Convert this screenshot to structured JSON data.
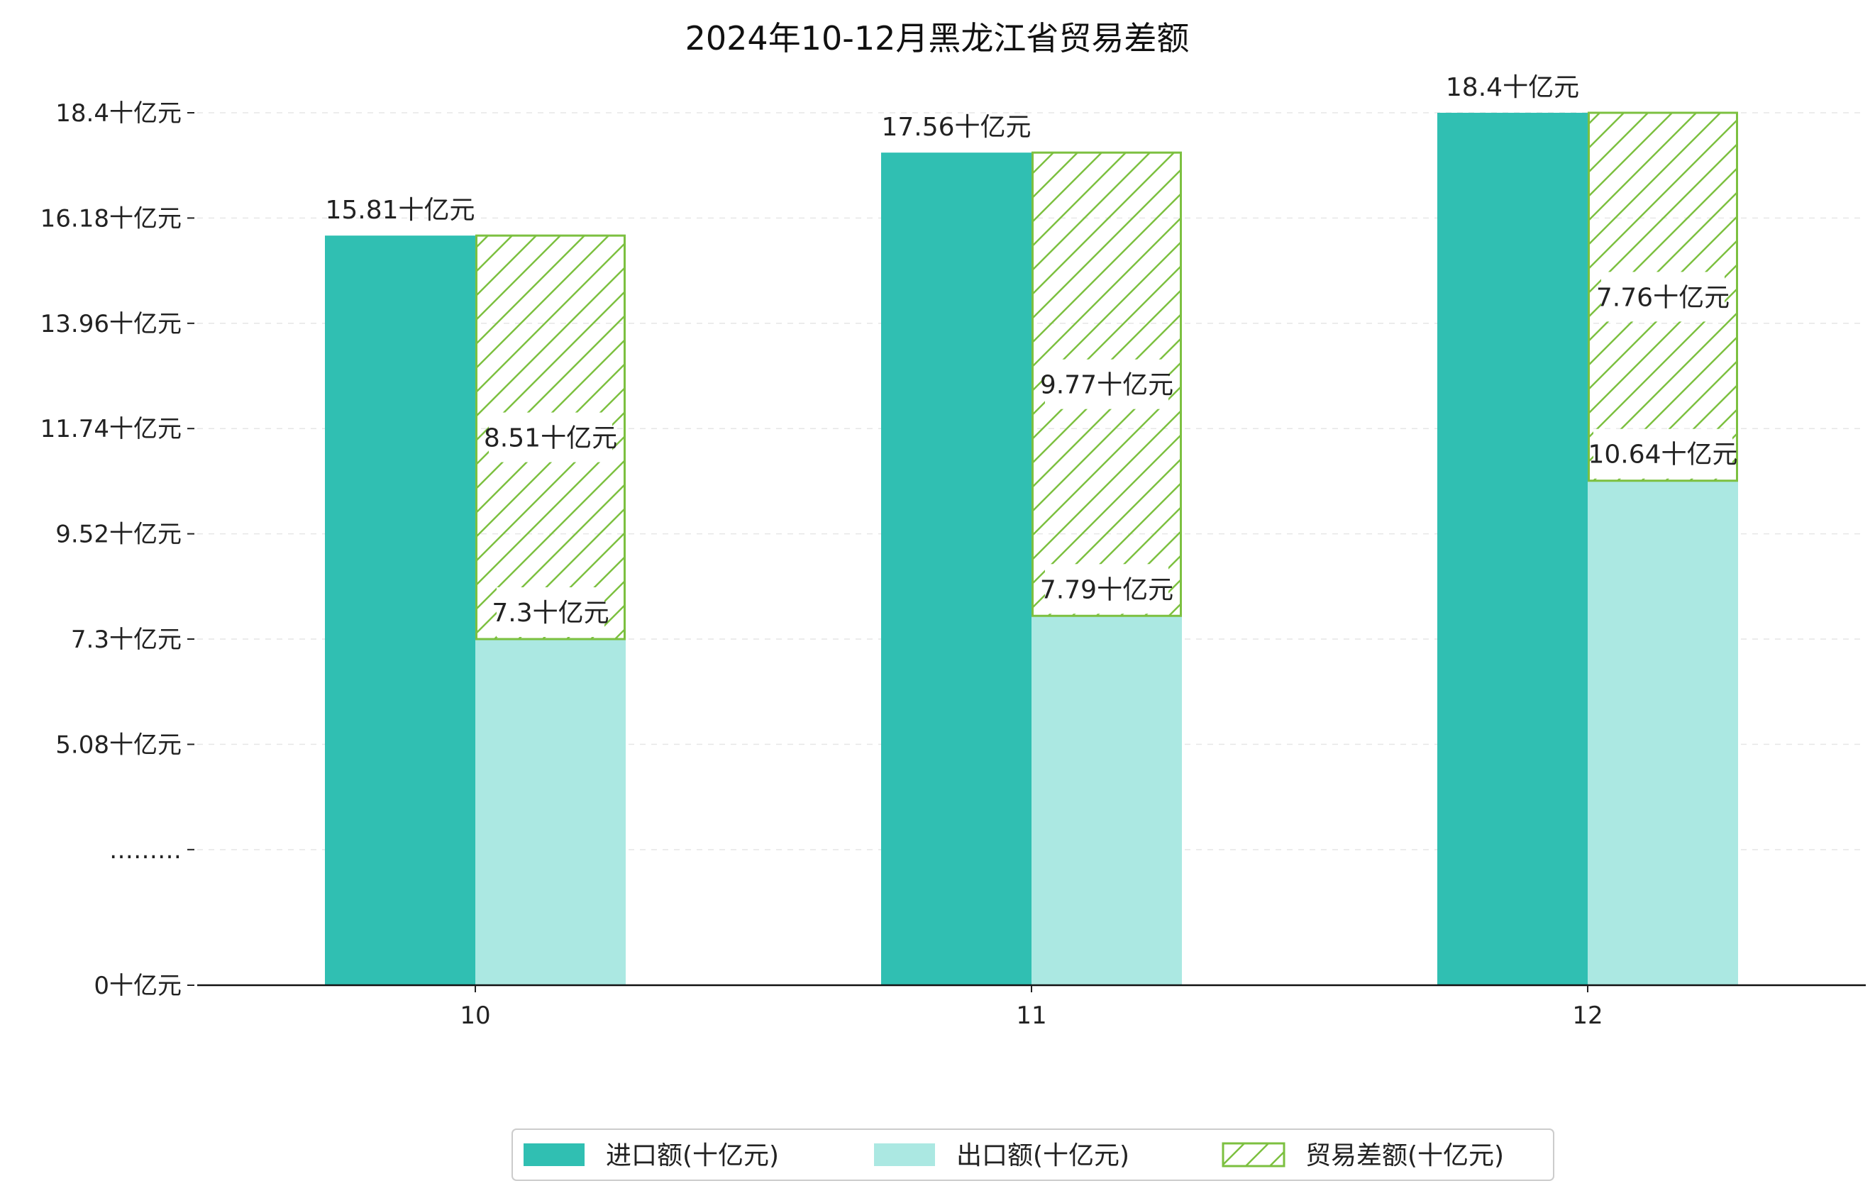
{
  "chart_data": {
    "type": "bar",
    "title": "2024年10-12月黑龙江省贸易差额",
    "categories": [
      "10",
      "11",
      "12"
    ],
    "ylim": [
      0,
      18.4
    ],
    "y_ticks": [
      {
        "value": 0,
        "label": "0十亿元"
      },
      {
        "value": 2.86,
        "label": "………"
      },
      {
        "value": 5.08,
        "label": "5.08十亿元"
      },
      {
        "value": 7.3,
        "label": "7.3十亿元"
      },
      {
        "value": 9.52,
        "label": "9.52十亿元"
      },
      {
        "value": 11.74,
        "label": "11.74十亿元"
      },
      {
        "value": 13.96,
        "label": "13.96十亿元"
      },
      {
        "value": 16.18,
        "label": "16.18十亿元"
      },
      {
        "value": 18.4,
        "label": "18.4十亿元"
      }
    ],
    "series": [
      {
        "name": "进口额(十亿元)",
        "values": [
          15.81,
          17.56,
          18.4
        ],
        "labels": [
          "15.81十亿元",
          "17.56十亿元",
          "18.4十亿元"
        ],
        "color": "#30bfb2"
      },
      {
        "name": "出口额(十亿元)",
        "values": [
          7.3,
          7.79,
          10.64
        ],
        "labels": [
          "7.3十亿元",
          "7.79十亿元",
          "10.64十亿元"
        ],
        "color": "#abe8e2"
      },
      {
        "name": "贸易差额(十亿元)",
        "values": [
          8.51,
          9.77,
          7.76
        ],
        "labels": [
          "8.51十亿元",
          "9.77十亿元",
          "7.76十亿元"
        ],
        "color": "#7cc040",
        "pattern": "hatch"
      }
    ],
    "grid": true,
    "legend_position": "bottom-center"
  }
}
